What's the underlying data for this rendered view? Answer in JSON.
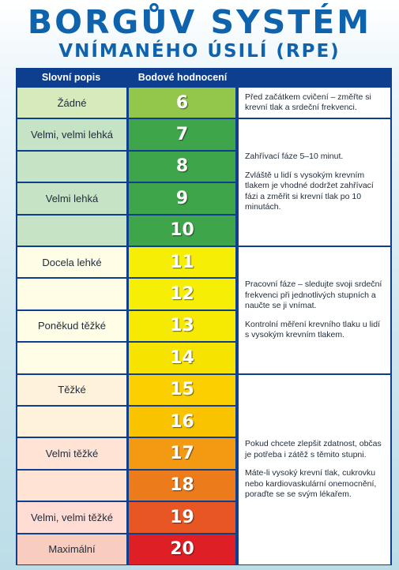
{
  "title": {
    "line1": "BORGŮV SYSTÉM",
    "line2": "VNÍMANÉHO ÚSILÍ (RPE)"
  },
  "headers": {
    "description": "Slovní popis",
    "score": "Bodové hodnocení",
    "notes": ""
  },
  "colors": {
    "title": "#0f63ad",
    "border": "#0d3f8e",
    "desc_bg": [
      "#d7eabb",
      "#c6e3c5",
      "#c6e3c5",
      "#c6e3c5",
      "#c6e3c5",
      "#fffde6",
      "#fffde6",
      "#fffde6",
      "#fffde6",
      "#fff2dc",
      "#fff2dc",
      "#ffe4d6",
      "#ffe4d6",
      "#ffdcd4",
      "#f8cdbf"
    ],
    "score_bg": [
      "#93c74c",
      "#3fa54a",
      "#3fa54a",
      "#3fa54a",
      "#3fa54a",
      "#f6ef05",
      "#f6ef05",
      "#f6ea02",
      "#f6e400",
      "#fbcf00",
      "#f9c300",
      "#f39a12",
      "#ec7b1b",
      "#e85624",
      "#df1f26"
    ]
  },
  "rows": [
    {
      "score": "6",
      "description": "Žádné"
    },
    {
      "score": "7",
      "description": "Velmi, velmi lehká"
    },
    {
      "score": "8",
      "description": ""
    },
    {
      "score": "9",
      "description": "Velmi lehká"
    },
    {
      "score": "10",
      "description": ""
    },
    {
      "score": "11",
      "description": "Docela lehké"
    },
    {
      "score": "12",
      "description": ""
    },
    {
      "score": "13",
      "description": "Poněkud těžké"
    },
    {
      "score": "14",
      "description": ""
    },
    {
      "score": "15",
      "description": "Těžké"
    },
    {
      "score": "16",
      "description": ""
    },
    {
      "score": "17",
      "description": "Velmi těžké"
    },
    {
      "score": "18",
      "description": ""
    },
    {
      "score": "19",
      "description": "Velmi, velmi těžké"
    },
    {
      "score": "20",
      "description": "Maximální"
    }
  ],
  "notes": [
    {
      "paragraphs": [
        "Před začátkem cvičení – změřte si krevní tlak a srdeční frekvenci."
      ]
    },
    {
      "paragraphs": [
        "Zahřívací fáze 5–10 minut.",
        "Zvláště u lidí s vysokým krevním tlakem je vhodné dodržet zahřívací fázi a změřit si krevní tlak po 10 minutách."
      ]
    },
    {
      "paragraphs": [
        "Pracovní fáze – sledujte svoji srdeční frekvenci při jednotlivých stupních a naučte se ji vnímat.",
        "Kontrolní měření krevního tlaku u lidí s vysokým krevním tlakem."
      ]
    },
    {
      "paragraphs": [
        "Pokud chcete zlepšit zdatnost, občas je potřeba i zátěž s těmito stupni.",
        "Máte-li vysoký krevní tlak, cukrovku nebo kardiovaskulární onemocnění, poraďte se se svým lékařem."
      ]
    }
  ]
}
